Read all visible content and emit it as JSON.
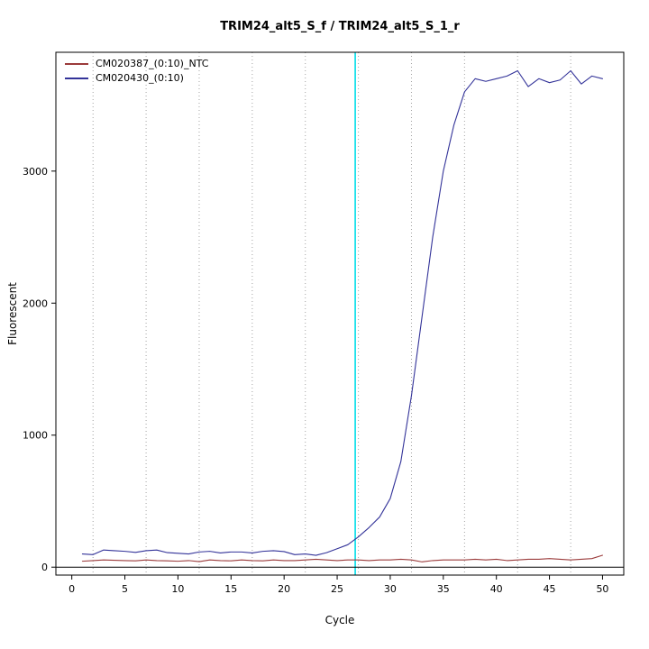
{
  "window": {
    "background": "#ffffff"
  },
  "chart_data": {
    "type": "line",
    "title": "TRIM24_alt5_S_f / TRIM24_alt5_S_1_r",
    "xlabel": "Cycle",
    "ylabel": "Fluorescent",
    "xlim": [
      -1.5,
      52
    ],
    "ylim": [
      -60,
      3900
    ],
    "x_ticks": [
      0,
      5,
      10,
      15,
      20,
      25,
      30,
      35,
      40,
      45,
      50
    ],
    "y_ticks": [
      0,
      1000,
      2000,
      3000
    ],
    "grid_x": [
      2,
      7,
      12,
      17,
      22,
      27,
      32,
      37,
      42,
      47
    ],
    "grid": "vertical-dotted",
    "grid_color": "#a3a3a3",
    "zero_line_y": 0,
    "zero_line_color": "#000000",
    "threshold_line_x": 26.7,
    "threshold_color": "#00dde8",
    "axis_color": "#000000",
    "legend_position": "top-left",
    "x": [
      1,
      2,
      3,
      4,
      5,
      6,
      7,
      8,
      9,
      10,
      11,
      12,
      13,
      14,
      15,
      16,
      17,
      18,
      19,
      20,
      21,
      22,
      23,
      24,
      25,
      26,
      27,
      28,
      29,
      30,
      31,
      32,
      33,
      34,
      35,
      36,
      37,
      38,
      39,
      40,
      41,
      42,
      43,
      44,
      45,
      46,
      47,
      48,
      49,
      50
    ],
    "series": [
      {
        "name": "CM020387_(0:10)_NTC",
        "color": "#9b3b3b",
        "values": [
          45,
          50,
          55,
          52,
          50,
          48,
          55,
          50,
          48,
          45,
          50,
          42,
          55,
          50,
          48,
          55,
          50,
          48,
          55,
          50,
          50,
          55,
          60,
          55,
          50,
          55,
          55,
          50,
          55,
          55,
          60,
          55,
          40,
          50,
          55,
          55,
          55,
          60,
          55,
          60,
          50,
          55,
          60,
          60,
          65,
          60,
          55,
          60,
          65,
          90
        ]
      },
      {
        "name": "CM020430_(0:10)",
        "color": "#333399",
        "values": [
          100,
          95,
          130,
          125,
          120,
          112,
          125,
          130,
          110,
          105,
          100,
          115,
          120,
          108,
          115,
          115,
          108,
          120,
          125,
          118,
          95,
          100,
          90,
          110,
          140,
          170,
          230,
          300,
          380,
          520,
          800,
          1300,
          1900,
          2500,
          3000,
          3350,
          3600,
          3700,
          3680,
          3700,
          3720,
          3760,
          3640,
          3700,
          3670,
          3690,
          3760,
          3660,
          3720,
          3700
        ]
      }
    ]
  }
}
